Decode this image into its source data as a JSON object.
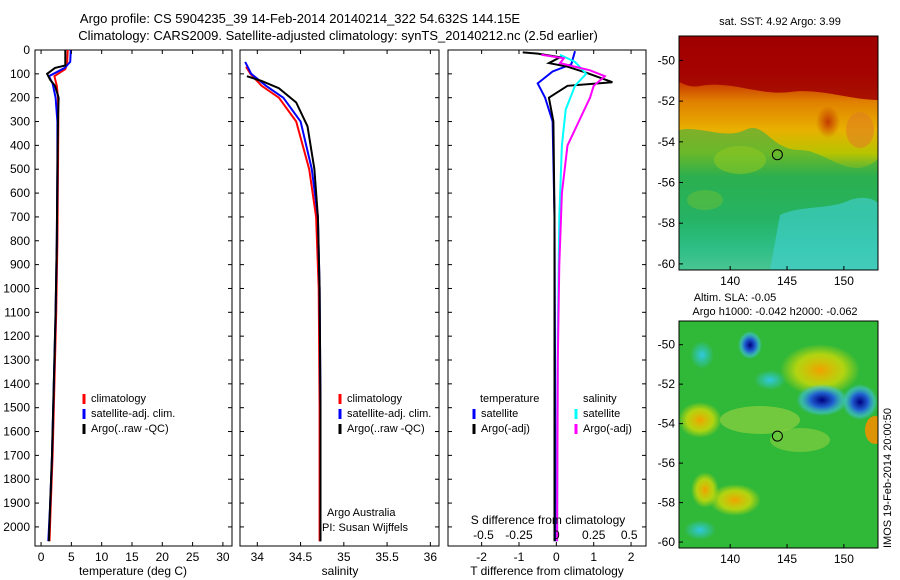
{
  "header": {
    "title_line1": "Argo profile: CS 5904235_39 14-Feb-2014 20140214_322 54.632S 144.15E",
    "title_line2": "Climatology: CARS2009. Satellite-adjusted climatology: synTS_20140212.nc (2.5d earlier)"
  },
  "colors": {
    "climatology": "#ff0000",
    "satellite": "#0000ff",
    "argo": "#000000",
    "sat_s": "#00ffff",
    "argo_s": "#ff00ff"
  },
  "chart_data": [
    {
      "type": "line",
      "id": "temperature",
      "xlabel": "temperature (deg C)",
      "xlim": [
        -1,
        31.5
      ],
      "ylim": [
        2080,
        0
      ],
      "xticks": [
        0,
        5,
        10,
        15,
        20,
        25,
        30
      ],
      "yticks": [
        0,
        100,
        200,
        300,
        400,
        500,
        600,
        700,
        800,
        900,
        1000,
        1100,
        1200,
        1300,
        1400,
        1500,
        1600,
        1700,
        1800,
        1900,
        2000
      ],
      "legend": [
        "climatology",
        "satellite-adj. clim.",
        "Argo(..raw -QC)"
      ],
      "series": [
        {
          "name": "climatology",
          "color": "#ff0000",
          "points": [
            [
              4.4,
              0
            ],
            [
              4.3,
              60
            ],
            [
              4.0,
              80
            ],
            [
              2.2,
              110
            ],
            [
              2.6,
              150
            ],
            [
              2.8,
              200
            ],
            [
              2.85,
              300
            ],
            [
              2.8,
              500
            ],
            [
              2.7,
              800
            ],
            [
              2.5,
              1100
            ],
            [
              2.2,
              1400
            ],
            [
              1.9,
              1700
            ],
            [
              1.6,
              1900
            ],
            [
              1.4,
              2060
            ]
          ]
        },
        {
          "name": "satellite-adj. clim.",
          "color": "#0000ff",
          "points": [
            [
              4.9,
              0
            ],
            [
              4.8,
              50
            ],
            [
              3.9,
              75
            ],
            [
              1.3,
              110
            ],
            [
              1.9,
              140
            ],
            [
              2.4,
              200
            ],
            [
              2.7,
              300
            ],
            [
              2.7,
              500
            ],
            [
              2.6,
              800
            ],
            [
              2.4,
              1100
            ],
            [
              2.1,
              1400
            ],
            [
              1.8,
              1700
            ],
            [
              1.5,
              1900
            ],
            [
              1.2,
              2060
            ]
          ]
        },
        {
          "name": "Argo(..raw -QC)",
          "color": "#000000",
          "points": [
            [
              4.0,
              0
            ],
            [
              4.0,
              60
            ],
            [
              4.0,
              65
            ],
            [
              2.3,
              75
            ],
            [
              1.0,
              100
            ],
            [
              1.5,
              125
            ],
            [
              2.3,
              150
            ],
            [
              2.9,
              200
            ],
            [
              2.8,
              300
            ],
            [
              2.7,
              500
            ],
            [
              2.6,
              800
            ],
            [
              2.4,
              1100
            ],
            [
              2.1,
              1400
            ],
            [
              1.8,
              1700
            ],
            [
              1.5,
              1900
            ],
            [
              1.3,
              2060
            ]
          ]
        }
      ]
    },
    {
      "type": "line",
      "id": "salinity",
      "xlabel": "salinity",
      "xlim": [
        33.8,
        36.1
      ],
      "ylim": [
        2080,
        0
      ],
      "xticks": [
        34,
        34.5,
        35,
        35.5,
        36
      ],
      "xticklabels": [
        "34",
        "34.5",
        "35",
        "35.5",
        "36"
      ],
      "legend": [
        "climatology",
        "satellite-adj. clim.",
        "Argo(..raw -QC)"
      ],
      "annotation": [
        "Argo Australia",
        "PI: Susan Wijffels"
      ],
      "series": [
        {
          "name": "climatology",
          "color": "#ff0000",
          "points": [
            [
              33.87,
              70
            ],
            [
              33.92,
              100
            ],
            [
              34.05,
              150
            ],
            [
              34.25,
              200
            ],
            [
              34.45,
              300
            ],
            [
              34.6,
              500
            ],
            [
              34.68,
              700
            ],
            [
              34.71,
              1000
            ],
            [
              34.72,
              1500
            ],
            [
              34.72,
              2060
            ]
          ]
        },
        {
          "name": "satellite-adj. clim.",
          "color": "#0000ff",
          "points": [
            [
              33.86,
              50
            ],
            [
              33.93,
              100
            ],
            [
              34.1,
              150
            ],
            [
              34.3,
              200
            ],
            [
              34.5,
              300
            ],
            [
              34.63,
              500
            ],
            [
              34.7,
              700
            ],
            [
              34.72,
              1000
            ],
            [
              34.73,
              1500
            ],
            [
              34.73,
              2060
            ]
          ]
        },
        {
          "name": "Argo(..raw -QC)",
          "color": "#000000",
          "points": [
            [
              33.88,
              110
            ],
            [
              34.05,
              130
            ],
            [
              34.25,
              160
            ],
            [
              34.45,
              220
            ],
            [
              34.58,
              320
            ],
            [
              34.66,
              500
            ],
            [
              34.7,
              700
            ],
            [
              34.72,
              1000
            ],
            [
              34.73,
              1500
            ],
            [
              34.73,
              2060
            ]
          ]
        }
      ]
    },
    {
      "type": "line",
      "id": "difference",
      "xlabel": "T difference from climatology",
      "xlabel_top": "S difference from climatology",
      "xlim": [
        -2.9,
        2.4
      ],
      "ylim": [
        2080,
        0
      ],
      "xticks": [
        -2,
        -1,
        0,
        1,
        2
      ],
      "xticks_top_labels": [
        "-0.5",
        "-0.25",
        "0",
        "0.25",
        "0.5"
      ],
      "legend_temperature": [
        "temperature",
        "satellite",
        "Argo(-adj)"
      ],
      "legend_salinity": [
        "salinity",
        "satellite",
        "Argo(-adj)"
      ],
      "series": [
        {
          "name": "temperature satellite",
          "color": "#0000ff",
          "points": [
            [
              0.5,
              5
            ],
            [
              0.4,
              60
            ],
            [
              -0.1,
              90
            ],
            [
              -0.5,
              140
            ],
            [
              -0.3,
              200
            ],
            [
              -0.1,
              300
            ],
            [
              -0.05,
              700
            ],
            [
              -0.03,
              1500
            ],
            [
              -0.02,
              2060
            ]
          ]
        },
        {
          "name": "temperature Argo(-adj)",
          "color": "#000000",
          "points": [
            [
              -0.9,
              10
            ],
            [
              -0.5,
              15
            ],
            [
              0.1,
              30
            ],
            [
              -0.2,
              55
            ],
            [
              0.3,
              70
            ],
            [
              0.8,
              95
            ],
            [
              1.5,
              135
            ],
            [
              0.3,
              150
            ],
            [
              -0.2,
              200
            ],
            [
              -0.08,
              300
            ],
            [
              -0.05,
              700
            ],
            [
              -0.05,
              1500
            ],
            [
              -0.05,
              2060
            ]
          ]
        },
        {
          "name": "salinity satellite",
          "color": "#00ffff",
          "points": [
            [
              0.1,
              20
            ],
            [
              0.5,
              50
            ],
            [
              0.8,
              100
            ],
            [
              0.5,
              150
            ],
            [
              0.25,
              250
            ],
            [
              0.15,
              400
            ],
            [
              0.08,
              700
            ],
            [
              0.04,
              1200
            ],
            [
              0.02,
              2060
            ]
          ]
        },
        {
          "name": "salinity Argo(-adj)",
          "color": "#ff00ff",
          "points": [
            [
              -0.4,
              20
            ],
            [
              0.2,
              35
            ],
            [
              0.1,
              55
            ],
            [
              0.9,
              85
            ],
            [
              1.3,
              110
            ],
            [
              1.0,
              150
            ],
            [
              0.9,
              200
            ],
            [
              0.6,
              300
            ],
            [
              0.3,
              400
            ],
            [
              0.15,
              600
            ],
            [
              0.08,
              900
            ],
            [
              0.04,
              1300
            ],
            [
              0.02,
              2060
            ]
          ]
        }
      ]
    },
    {
      "type": "heatmap",
      "id": "sst-map",
      "title": "sat. SST: 4.92 Argo: 3.99",
      "xlim": [
        135.5,
        153
      ],
      "ylim": [
        -60.3,
        -48.8
      ],
      "xticks": [
        140,
        145,
        150
      ],
      "yticks": [
        -50,
        -52,
        -54,
        -56,
        -58,
        -60
      ],
      "marker": [
        144.15,
        -54.632
      ]
    },
    {
      "type": "heatmap",
      "id": "sla-map",
      "title_line1": "Altim. SLA: -0.05",
      "title_line2": "Argo h1000: -0.042 h2000: -0.062",
      "xlim": [
        135.5,
        153
      ],
      "ylim": [
        -60.3,
        -48.8
      ],
      "xticks": [
        140,
        145,
        150
      ],
      "yticks": [
        -50,
        -52,
        -54,
        -56,
        -58,
        -60
      ],
      "marker": [
        144.15,
        -54.632
      ]
    }
  ],
  "watermark": "IMOS 19-Feb-2014 20:00:50"
}
